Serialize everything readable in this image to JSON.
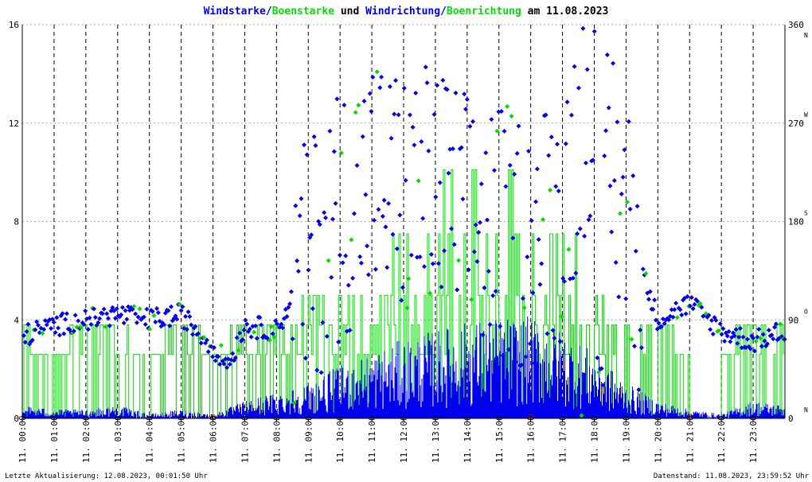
{
  "title": {
    "part1": "Windstarke",
    "sep1": "/",
    "part2": "Boenstarke",
    "part3": " und ",
    "part4": "Windrichtung",
    "sep2": "/",
    "part5": "Boenrichtung",
    "part6": " am 11.08.2023"
  },
  "colors": {
    "wind": "#0000ee",
    "gust": "#00dd00",
    "grid": "#000000",
    "hgrid": "#aaaaaa",
    "marker": "#cc0000"
  },
  "footer": {
    "left": "Letzte Aktualisierung: 12.08.2023, 00:01:50 Uhr",
    "right": "Datenstand: 11.08.2023, 23:59:52 Uhr"
  },
  "chart_data": {
    "type": "scatter",
    "date_label": "11.",
    "x_ticks": [
      "00:00",
      "01:00",
      "02:00",
      "03:00",
      "04:00",
      "05:00",
      "06:00",
      "07:00",
      "08:00",
      "09:00",
      "10:00",
      "11:00",
      "12:00",
      "13:00",
      "14:00",
      "15:00",
      "16:00",
      "17:00",
      "18:00",
      "19:00",
      "20:00",
      "21:00",
      "22:00",
      "23:00"
    ],
    "xlim_hours": [
      0,
      24
    ],
    "left_axis": {
      "ticks": [
        "0",
        "4",
        "8",
        "12",
        "16"
      ],
      "ylim": [
        0,
        16
      ]
    },
    "right_axis": {
      "ticks": [
        "0",
        "90",
        "180",
        "270",
        "360"
      ],
      "direction_labels": [
        "N",
        "O",
        "S",
        "W",
        "N"
      ],
      "ylim": [
        0,
        360
      ]
    },
    "grid": {
      "vertical": "dashed hourly",
      "horizontal": "dotted"
    },
    "markers": [
      "06:00",
      "16:00",
      "21:00"
    ],
    "series": [
      {
        "name": "Windstarke",
        "color": "#0000ee",
        "approx_profile_hours": [
          0,
          1,
          2,
          3,
          4,
          5,
          6,
          7,
          8,
          9,
          10,
          11,
          12,
          13,
          14,
          15,
          16,
          17,
          18,
          19,
          20,
          21,
          22,
          23,
          24
        ],
        "approx_profile_values": [
          0.3,
          0.2,
          0.2,
          0.3,
          0.1,
          0.2,
          0.1,
          0.4,
          0.6,
          0.8,
          1.2,
          1.5,
          1.8,
          2.0,
          2.2,
          2.3,
          2.3,
          2.0,
          1.5,
          0.8,
          0.4,
          0.2,
          0.1,
          0.4,
          0.3
        ]
      },
      {
        "name": "Boenstarke",
        "color": "#00dd00",
        "approx_profile_hours": [
          0,
          1,
          2,
          3,
          4,
          5,
          6,
          7,
          8,
          9,
          10,
          11,
          12,
          13,
          14,
          15,
          16,
          17,
          18,
          19,
          20,
          21,
          22,
          23,
          24
        ],
        "approx_profile_values": [
          2.6,
          0,
          2.6,
          2.6,
          0,
          2.6,
          0,
          2.6,
          2.6,
          3.5,
          4.5,
          5.0,
          6.5,
          7.5,
          8.5,
          8.5,
          8.0,
          6.5,
          4.5,
          2.6,
          2.6,
          0,
          0,
          2.6,
          2.6
        ]
      },
      {
        "name": "Windrichtung",
        "color": "#0000ee",
        "approx_direction_hours": [
          0,
          1,
          2,
          3,
          4,
          5,
          6,
          6.5,
          7,
          8,
          9,
          10,
          11,
          12,
          13,
          14,
          15,
          16,
          17,
          18,
          19,
          20,
          21,
          22,
          23,
          24
        ],
        "approx_direction_degrees": [
          75,
          85,
          90,
          95,
          90,
          95,
          65,
          50,
          85,
          80,
          140,
          190,
          220,
          200,
          210,
          180,
          170,
          160,
          190,
          320,
          180,
          90,
          105,
          80,
          70,
          80
        ]
      },
      {
        "name": "Boenrichtung",
        "color": "#00dd00",
        "approx_direction_hours": [
          0,
          2,
          4,
          6,
          8,
          10,
          12,
          14,
          16,
          18,
          20,
          22,
          24
        ],
        "approx_direction_degrees": [
          80,
          90,
          90,
          70,
          90,
          160,
          200,
          190,
          170,
          320,
          90,
          80,
          75
        ]
      }
    ]
  }
}
